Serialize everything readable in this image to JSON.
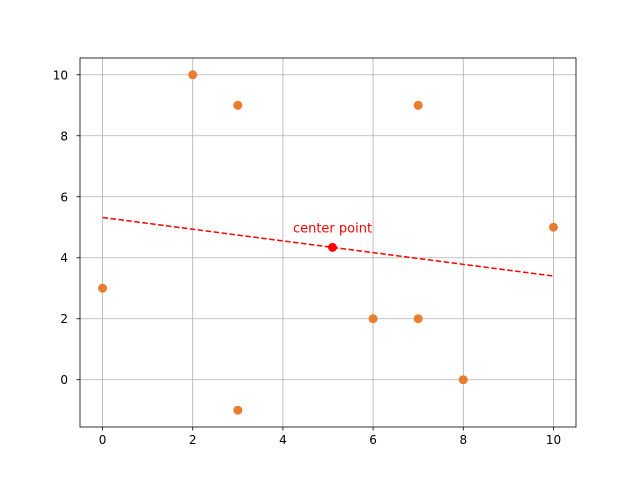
{
  "chart_data": {
    "type": "scatter",
    "title": "",
    "xlabel": "",
    "ylabel": "",
    "xlim": [
      -0.5,
      10.5
    ],
    "ylim": [
      -1.55,
      10.55
    ],
    "xticks": [
      0,
      2,
      4,
      6,
      8,
      10
    ],
    "yticks": [
      0,
      2,
      4,
      6,
      8,
      10
    ],
    "grid": true,
    "series": [
      {
        "type": "scatter",
        "color": "#e87d2f",
        "points": [
          {
            "x": 0,
            "y": 3
          },
          {
            "x": 2,
            "y": 10
          },
          {
            "x": 3,
            "y": 9
          },
          {
            "x": 3,
            "y": -1
          },
          {
            "x": 6,
            "y": 2
          },
          {
            "x": 7,
            "y": 9
          },
          {
            "x": 7,
            "y": 2
          },
          {
            "x": 8,
            "y": 0
          },
          {
            "x": 10,
            "y": 5
          }
        ]
      },
      {
        "type": "line",
        "style": "dashed",
        "color": "#ff0000",
        "points": [
          {
            "x": 0,
            "y": 5.32
          },
          {
            "x": 10,
            "y": 3.4
          }
        ]
      },
      {
        "type": "scatter",
        "color": "#ff0000",
        "points": [
          {
            "x": 5.1,
            "y": 4.34
          }
        ]
      }
    ],
    "annotations": [
      {
        "text": "center point",
        "x": 5.1,
        "y": 4.34,
        "color": "#ff0000"
      }
    ]
  }
}
